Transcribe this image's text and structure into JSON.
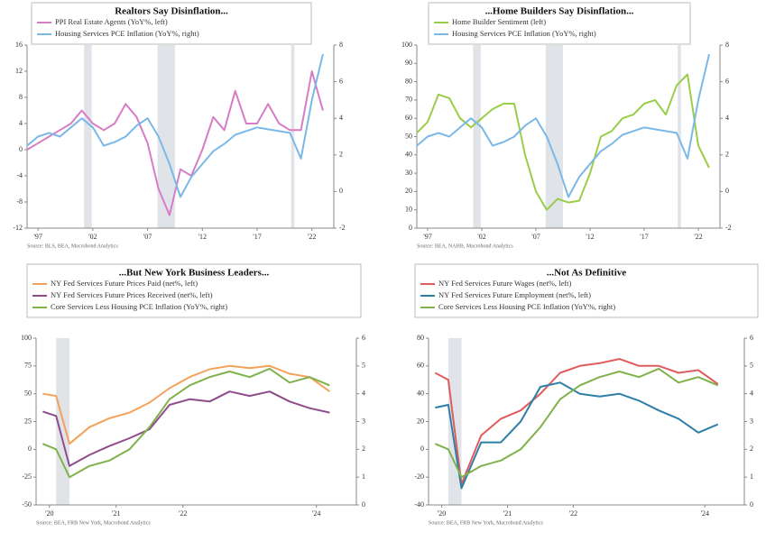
{
  "chart_data": [
    {
      "type": "line",
      "title": "Realtors Say Disinflation...",
      "source": "Source: BLS, BEA, Macrobond Analytics",
      "x": [
        1996,
        1997,
        1998,
        1999,
        2000,
        2001,
        2002,
        2003,
        2004,
        2005,
        2006,
        2007,
        2008,
        2009,
        2010,
        2011,
        2012,
        2013,
        2014,
        2015,
        2016,
        2017,
        2018,
        2019,
        2020,
        2021,
        2022,
        2023
      ],
      "xlim": [
        1996,
        2024
      ],
      "xticks": [
        {
          "value": 1997,
          "label": "'97"
        },
        {
          "value": 2002,
          "label": "'02"
        },
        {
          "value": 2007,
          "label": "'07"
        },
        {
          "value": 2012,
          "label": "'12"
        },
        {
          "value": 2017,
          "label": "'17"
        },
        {
          "value": 2022,
          "label": "'22"
        }
      ],
      "ylim": [
        -12,
        16
      ],
      "yticks": [
        -12,
        -8,
        -4,
        0,
        4,
        8,
        12,
        16
      ],
      "y2lim": [
        -2,
        8
      ],
      "y2ticks": [
        -2,
        0,
        2,
        4,
        6,
        8
      ],
      "recessions": [
        [
          2001.2,
          2001.9
        ],
        [
          2007.9,
          2009.5
        ],
        [
          2020.1,
          2020.4
        ]
      ],
      "series": [
        {
          "name": "PPI Real Estate Agents (YoY%, left)",
          "color": "#d77cc6",
          "values": [
            0,
            1,
            2,
            3,
            4,
            6,
            4,
            3,
            4,
            7,
            5,
            1,
            -6,
            -10,
            -3,
            -4,
            0,
            5,
            3,
            9,
            4,
            4,
            7,
            4,
            3,
            3,
            12,
            6
          ]
        },
        {
          "name": "Housing Services PCE Inflation (YoY%, right)",
          "color": "#7ab8e8",
          "axis": "y2",
          "values": [
            2.5,
            3,
            3.2,
            3,
            3.5,
            4,
            3.5,
            2.5,
            2.7,
            3,
            3.6,
            4,
            3,
            1.5,
            -0.3,
            0.8,
            1.5,
            2.2,
            2.6,
            3.1,
            3.3,
            3.5,
            3.4,
            3.3,
            3.2,
            1.8,
            5,
            7.5
          ]
        }
      ]
    },
    {
      "type": "line",
      "title": "...Home Builders Say Disinflation...",
      "source": "Source: BEA, NAHB, Macrobond Analytics",
      "x": [
        1996,
        1997,
        1998,
        1999,
        2000,
        2001,
        2002,
        2003,
        2004,
        2005,
        2006,
        2007,
        2008,
        2009,
        2010,
        2011,
        2012,
        2013,
        2014,
        2015,
        2016,
        2017,
        2018,
        2019,
        2020,
        2021,
        2022,
        2023
      ],
      "xlim": [
        1996,
        2024
      ],
      "xticks": [
        {
          "value": 1997,
          "label": "'97"
        },
        {
          "value": 2002,
          "label": "'02"
        },
        {
          "value": 2007,
          "label": "'07"
        },
        {
          "value": 2012,
          "label": "'12"
        },
        {
          "value": 2017,
          "label": "'17"
        },
        {
          "value": 2022,
          "label": "'22"
        }
      ],
      "ylim": [
        0,
        100
      ],
      "yticks": [
        0,
        10,
        20,
        30,
        40,
        50,
        60,
        70,
        80,
        90,
        100
      ],
      "y2lim": [
        -2,
        8
      ],
      "y2ticks": [
        -2,
        0,
        2,
        4,
        6,
        8
      ],
      "recessions": [
        [
          2001.2,
          2001.9
        ],
        [
          2007.9,
          2009.5
        ],
        [
          2020.1,
          2020.4
        ]
      ],
      "series": [
        {
          "name": "Home Builder Sentiment (left)",
          "color": "#9acd4a",
          "values": [
            52,
            58,
            73,
            71,
            60,
            55,
            60,
            65,
            68,
            68,
            40,
            20,
            10,
            16,
            14,
            15,
            30,
            50,
            53,
            60,
            62,
            68,
            70,
            62,
            78,
            84,
            45,
            33
          ]
        },
        {
          "name": "Housing Services PCE Inflation (YoY%, right)",
          "color": "#7ab8e8",
          "axis": "y2",
          "values": [
            2.5,
            3,
            3.2,
            3,
            3.5,
            4,
            3.5,
            2.5,
            2.7,
            3,
            3.6,
            4,
            3,
            1.5,
            -0.3,
            0.8,
            1.5,
            2.2,
            2.6,
            3.1,
            3.3,
            3.5,
            3.4,
            3.3,
            3.2,
            1.8,
            5,
            7.5
          ]
        }
      ]
    },
    {
      "type": "line",
      "title": "...But New York Business Leaders...",
      "source": "Source: BEA, FRB New York, Macrobond Analytics",
      "x": [
        2019.9,
        2020.1,
        2020.3,
        2020.6,
        2020.9,
        2021.2,
        2021.5,
        2021.8,
        2022.1,
        2022.4,
        2022.7,
        2023.0,
        2023.3,
        2023.6,
        2023.9,
        2024.2
      ],
      "xlim": [
        2019.8,
        2024.6
      ],
      "xticks": [
        {
          "value": 2020,
          "label": "'20"
        },
        {
          "value": 2021,
          "label": "'21"
        },
        {
          "value": 2022,
          "label": "'22"
        },
        {
          "value": 2024,
          "label": "'24"
        }
      ],
      "ylim": [
        -50,
        100
      ],
      "yticks": [
        -50,
        -25,
        0,
        25,
        50,
        75,
        100
      ],
      "y2lim": [
        0,
        6
      ],
      "y2ticks": [
        0,
        1,
        2,
        3,
        4,
        5,
        6
      ],
      "recessions": [
        [
          2020.1,
          2020.3
        ]
      ],
      "series": [
        {
          "name": "NY Fed Services Future Prices Paid (net%, left)",
          "color": "#f4a259",
          "values": [
            50,
            48,
            5,
            20,
            28,
            33,
            42,
            55,
            65,
            72,
            75,
            73,
            75,
            68,
            65,
            52
          ]
        },
        {
          "name": "NY Fed Services Future Prices Received (net%, left)",
          "color": "#8e4c8c",
          "values": [
            34,
            30,
            -15,
            -5,
            3,
            10,
            18,
            40,
            45,
            43,
            52,
            48,
            52,
            43,
            37,
            33
          ]
        },
        {
          "name": "Core Services Less Housing PCE Inflation (YoY%, right)",
          "color": "#7fb24a",
          "axis": "y2",
          "values": [
            2.2,
            2.0,
            1.0,
            1.4,
            1.6,
            2.0,
            2.8,
            3.8,
            4.3,
            4.6,
            4.8,
            4.6,
            4.9,
            4.4,
            4.6,
            4.3
          ]
        }
      ]
    },
    {
      "type": "line",
      "title": "...Not As Definitive",
      "source": "Source: BEA, FRB New York, Macrobond Analytics",
      "x": [
        2019.9,
        2020.1,
        2020.3,
        2020.6,
        2020.9,
        2021.2,
        2021.5,
        2021.8,
        2022.1,
        2022.4,
        2022.7,
        2023.0,
        2023.3,
        2023.6,
        2023.9,
        2024.2
      ],
      "xlim": [
        2019.8,
        2024.6
      ],
      "xticks": [
        {
          "value": 2020,
          "label": "'20"
        },
        {
          "value": 2021,
          "label": "'21"
        },
        {
          "value": 2022,
          "label": "'22"
        },
        {
          "value": 2024,
          "label": "'24"
        }
      ],
      "ylim": [
        -40,
        80
      ],
      "yticks": [
        -40,
        -20,
        0,
        20,
        40,
        60,
        80
      ],
      "y2lim": [
        0,
        6
      ],
      "y2ticks": [
        0,
        1,
        2,
        3,
        4,
        5,
        6
      ],
      "recessions": [
        [
          2020.1,
          2020.3
        ]
      ],
      "series": [
        {
          "name": "NY Fed Services Future Wages (net%, left)",
          "color": "#e05c5c",
          "values": [
            55,
            50,
            -25,
            10,
            22,
            28,
            40,
            55,
            60,
            62,
            65,
            60,
            60,
            55,
            57,
            47
          ]
        },
        {
          "name": "NY Fed Services Future Employment (net%, left)",
          "color": "#2e7fa8",
          "values": [
            30,
            32,
            -28,
            5,
            5,
            20,
            45,
            48,
            40,
            38,
            40,
            35,
            28,
            22,
            12,
            18
          ]
        },
        {
          "name": "Core Services Less Housing PCE Inflation (YoY%, right)",
          "color": "#7fb24a",
          "axis": "y2",
          "values": [
            2.2,
            2.0,
            1.0,
            1.4,
            1.6,
            2.0,
            2.8,
            3.8,
            4.3,
            4.6,
            4.8,
            4.6,
            4.9,
            4.4,
            4.6,
            4.3
          ]
        }
      ]
    }
  ]
}
